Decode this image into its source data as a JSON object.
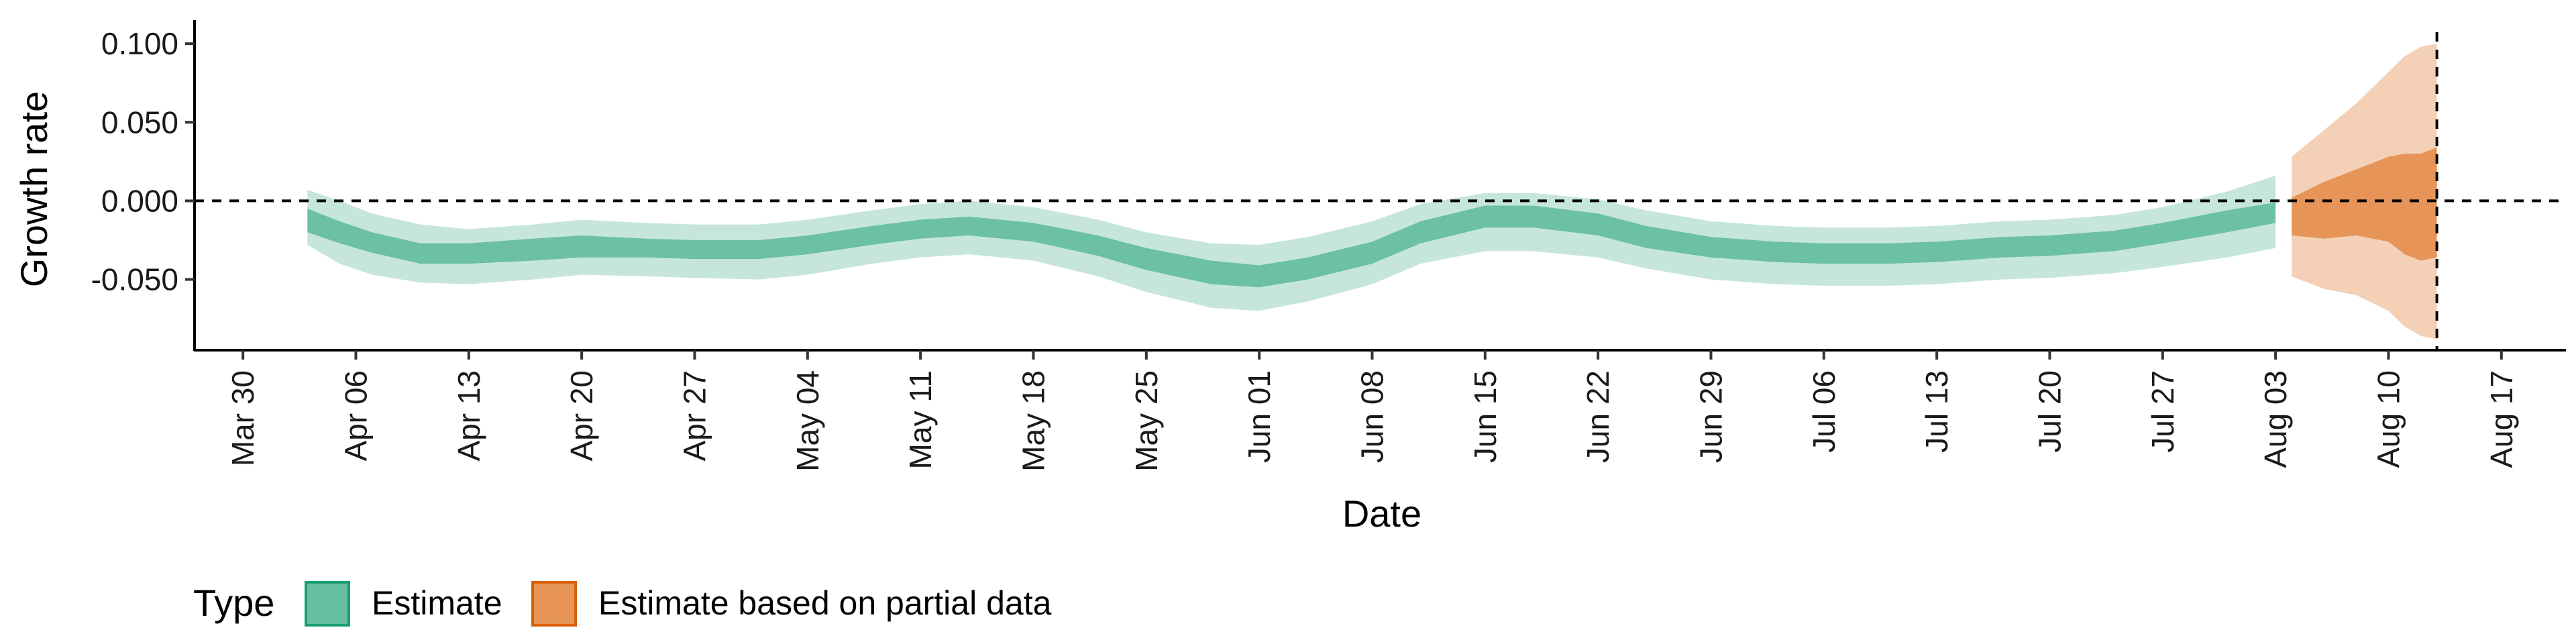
{
  "chart_data": {
    "type": "area",
    "xlabel": "Date",
    "ylabel": "Growth rate",
    "ylim": [
      -0.095,
      0.115
    ],
    "y_ticks": [
      -0.05,
      0.0,
      0.05,
      0.1
    ],
    "y_tick_labels": [
      "-0.050",
      "0.000",
      "0.050",
      "0.100"
    ],
    "x_ticks": [
      "2020-03-30",
      "2020-04-06",
      "2020-04-13",
      "2020-04-20",
      "2020-04-27",
      "2020-05-04",
      "2020-05-11",
      "2020-05-18",
      "2020-05-25",
      "2020-06-01",
      "2020-06-08",
      "2020-06-15",
      "2020-06-22",
      "2020-06-29",
      "2020-07-06",
      "2020-07-13",
      "2020-07-20",
      "2020-07-27",
      "2020-08-03",
      "2020-08-10",
      "2020-08-17"
    ],
    "x_tick_labels": [
      "Mar 30",
      "Apr 06",
      "Apr 13",
      "Apr 20",
      "Apr 27",
      "May 04",
      "May 11",
      "May 18",
      "May 25",
      "Jun 01",
      "Jun 08",
      "Jun 15",
      "Jun 22",
      "Jun 29",
      "Jul 06",
      "Jul 13",
      "Jul 20",
      "Jul 27",
      "Aug 03",
      "Aug 10",
      "Aug 17"
    ],
    "hline_y": 0.0,
    "vline_date": "2020-08-13",
    "legend": {
      "title": "Type",
      "position": "bottom-left",
      "entries": [
        {
          "label": "Estimate",
          "fill": "#66bfa2",
          "border": "#1b9e77"
        },
        {
          "label": "Estimate based on partial data",
          "fill": "#e69458",
          "border": "#d95f02"
        }
      ]
    },
    "series": [
      {
        "name": "Estimate",
        "color_outer": "#c6e6da",
        "color_inner": "#6cc0a5",
        "points": [
          {
            "date": "2020-04-03",
            "inner": [
              -0.02,
              -0.005
            ],
            "outer": [
              -0.028,
              0.007
            ]
          },
          {
            "date": "2020-04-05",
            "inner": [
              -0.027,
              -0.013
            ],
            "outer": [
              -0.04,
              0.0
            ]
          },
          {
            "date": "2020-04-07",
            "inner": [
              -0.033,
              -0.02
            ],
            "outer": [
              -0.047,
              -0.008
            ]
          },
          {
            "date": "2020-04-10",
            "inner": [
              -0.04,
              -0.027
            ],
            "outer": [
              -0.052,
              -0.015
            ]
          },
          {
            "date": "2020-04-13",
            "inner": [
              -0.04,
              -0.027
            ],
            "outer": [
              -0.053,
              -0.018
            ]
          },
          {
            "date": "2020-04-17",
            "inner": [
              -0.038,
              -0.024
            ],
            "outer": [
              -0.05,
              -0.015
            ]
          },
          {
            "date": "2020-04-20",
            "inner": [
              -0.036,
              -0.022
            ],
            "outer": [
              -0.047,
              -0.012
            ]
          },
          {
            "date": "2020-04-24",
            "inner": [
              -0.036,
              -0.024
            ],
            "outer": [
              -0.048,
              -0.014
            ]
          },
          {
            "date": "2020-04-27",
            "inner": [
              -0.037,
              -0.025
            ],
            "outer": [
              -0.049,
              -0.015
            ]
          },
          {
            "date": "2020-05-01",
            "inner": [
              -0.037,
              -0.025
            ],
            "outer": [
              -0.05,
              -0.015
            ]
          },
          {
            "date": "2020-05-04",
            "inner": [
              -0.034,
              -0.022
            ],
            "outer": [
              -0.047,
              -0.012
            ]
          },
          {
            "date": "2020-05-08",
            "inner": [
              -0.028,
              -0.016
            ],
            "outer": [
              -0.04,
              -0.006
            ]
          },
          {
            "date": "2020-05-11",
            "inner": [
              -0.024,
              -0.012
            ],
            "outer": [
              -0.036,
              -0.002
            ]
          },
          {
            "date": "2020-05-14",
            "inner": [
              -0.022,
              -0.01
            ],
            "outer": [
              -0.034,
              0.0
            ]
          },
          {
            "date": "2020-05-18",
            "inner": [
              -0.026,
              -0.014
            ],
            "outer": [
              -0.038,
              -0.004
            ]
          },
          {
            "date": "2020-05-22",
            "inner": [
              -0.035,
              -0.022
            ],
            "outer": [
              -0.048,
              -0.012
            ]
          },
          {
            "date": "2020-05-25",
            "inner": [
              -0.044,
              -0.03
            ],
            "outer": [
              -0.058,
              -0.02
            ]
          },
          {
            "date": "2020-05-29",
            "inner": [
              -0.053,
              -0.038
            ],
            "outer": [
              -0.068,
              -0.027
            ]
          },
          {
            "date": "2020-06-01",
            "inner": [
              -0.055,
              -0.041
            ],
            "outer": [
              -0.07,
              -0.028
            ]
          },
          {
            "date": "2020-06-04",
            "inner": [
              -0.05,
              -0.036
            ],
            "outer": [
              -0.064,
              -0.023
            ]
          },
          {
            "date": "2020-06-08",
            "inner": [
              -0.04,
              -0.026
            ],
            "outer": [
              -0.053,
              -0.013
            ]
          },
          {
            "date": "2020-06-11",
            "inner": [
              -0.027,
              -0.013
            ],
            "outer": [
              -0.04,
              -0.002
            ]
          },
          {
            "date": "2020-06-15",
            "inner": [
              -0.017,
              -0.003
            ],
            "outer": [
              -0.032,
              0.005
            ]
          },
          {
            "date": "2020-06-18",
            "inner": [
              -0.017,
              -0.003
            ],
            "outer": [
              -0.032,
              0.005
            ]
          },
          {
            "date": "2020-06-22",
            "inner": [
              -0.022,
              -0.008
            ],
            "outer": [
              -0.036,
              0.001
            ]
          },
          {
            "date": "2020-06-25",
            "inner": [
              -0.03,
              -0.016
            ],
            "outer": [
              -0.043,
              -0.006
            ]
          },
          {
            "date": "2020-06-29",
            "inner": [
              -0.036,
              -0.023
            ],
            "outer": [
              -0.05,
              -0.013
            ]
          },
          {
            "date": "2020-07-03",
            "inner": [
              -0.039,
              -0.026
            ],
            "outer": [
              -0.053,
              -0.016
            ]
          },
          {
            "date": "2020-07-06",
            "inner": [
              -0.04,
              -0.027
            ],
            "outer": [
              -0.054,
              -0.017
            ]
          },
          {
            "date": "2020-07-10",
            "inner": [
              -0.04,
              -0.027
            ],
            "outer": [
              -0.054,
              -0.017
            ]
          },
          {
            "date": "2020-07-13",
            "inner": [
              -0.039,
              -0.026
            ],
            "outer": [
              -0.053,
              -0.016
            ]
          },
          {
            "date": "2020-07-17",
            "inner": [
              -0.036,
              -0.023
            ],
            "outer": [
              -0.05,
              -0.013
            ]
          },
          {
            "date": "2020-07-20",
            "inner": [
              -0.035,
              -0.022
            ],
            "outer": [
              -0.049,
              -0.012
            ]
          },
          {
            "date": "2020-07-24",
            "inner": [
              -0.032,
              -0.019
            ],
            "outer": [
              -0.046,
              -0.009
            ]
          },
          {
            "date": "2020-07-27",
            "inner": [
              -0.027,
              -0.014
            ],
            "outer": [
              -0.042,
              -0.004
            ]
          },
          {
            "date": "2020-07-31",
            "inner": [
              -0.02,
              -0.006
            ],
            "outer": [
              -0.036,
              0.006
            ]
          },
          {
            "date": "2020-08-03",
            "inner": [
              -0.014,
              -0.001
            ],
            "outer": [
              -0.03,
              0.016
            ]
          }
        ]
      },
      {
        "name": "Estimate based on partial data",
        "color_outer": "#f3d0b6",
        "color_inner": "#e69458",
        "points": [
          {
            "date": "2020-08-04",
            "inner": [
              -0.022,
              0.002
            ],
            "outer": [
              -0.048,
              0.028
            ]
          },
          {
            "date": "2020-08-06",
            "inner": [
              -0.024,
              0.012
            ],
            "outer": [
              -0.056,
              0.045
            ]
          },
          {
            "date": "2020-08-08",
            "inner": [
              -0.022,
              0.02
            ],
            "outer": [
              -0.06,
              0.062
            ]
          },
          {
            "date": "2020-08-10",
            "inner": [
              -0.026,
              0.028
            ],
            "outer": [
              -0.07,
              0.082
            ]
          },
          {
            "date": "2020-08-11",
            "inner": [
              -0.034,
              0.03
            ],
            "outer": [
              -0.08,
              0.092
            ]
          },
          {
            "date": "2020-08-12",
            "inner": [
              -0.038,
              0.03
            ],
            "outer": [
              -0.086,
              0.098
            ]
          },
          {
            "date": "2020-08-13",
            "inner": [
              -0.036,
              0.034
            ],
            "outer": [
              -0.088,
              0.1
            ]
          }
        ]
      }
    ]
  }
}
